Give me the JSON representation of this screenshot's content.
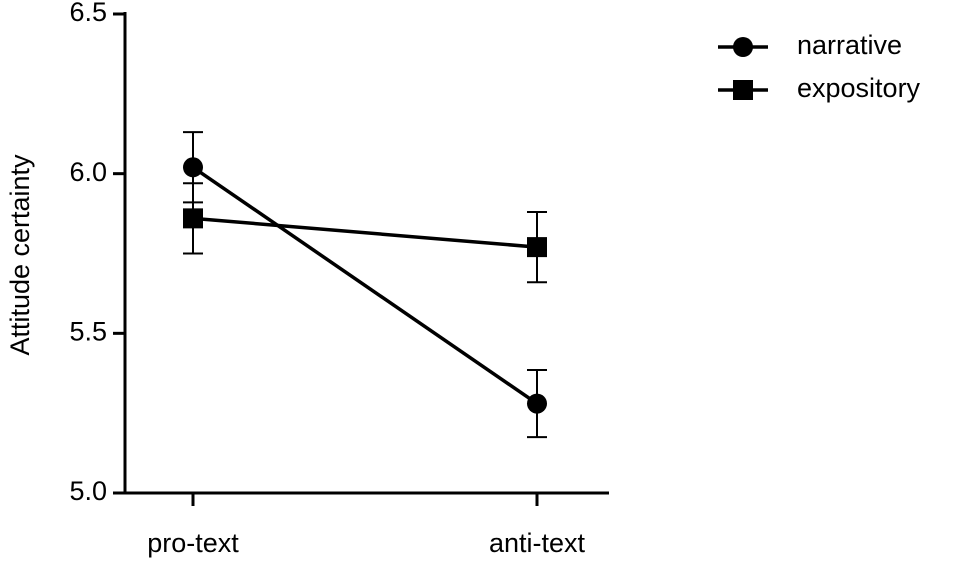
{
  "chart_data": {
    "type": "line",
    "y_label": "Attitude certainty",
    "categories": [
      "pro-text",
      "anti-text"
    ],
    "series": [
      {
        "name": "narrative",
        "color": "#000000",
        "marker": "circle",
        "values": [
          6.02,
          5.28
        ],
        "errors": [
          0.11,
          0.105
        ]
      },
      {
        "name": "expository",
        "color": "#000000",
        "marker": "square",
        "values": [
          5.86,
          5.77
        ],
        "errors": [
          0.11,
          0.11
        ]
      }
    ],
    "ylim": [
      5,
      6.5
    ],
    "yticks": [
      {
        "value": 5,
        "label": "5.0"
      },
      5.5,
      {
        "value": 6,
        "label": "6.0"
      },
      6.5
    ],
    "legend": "upper right",
    "grid": false
  }
}
